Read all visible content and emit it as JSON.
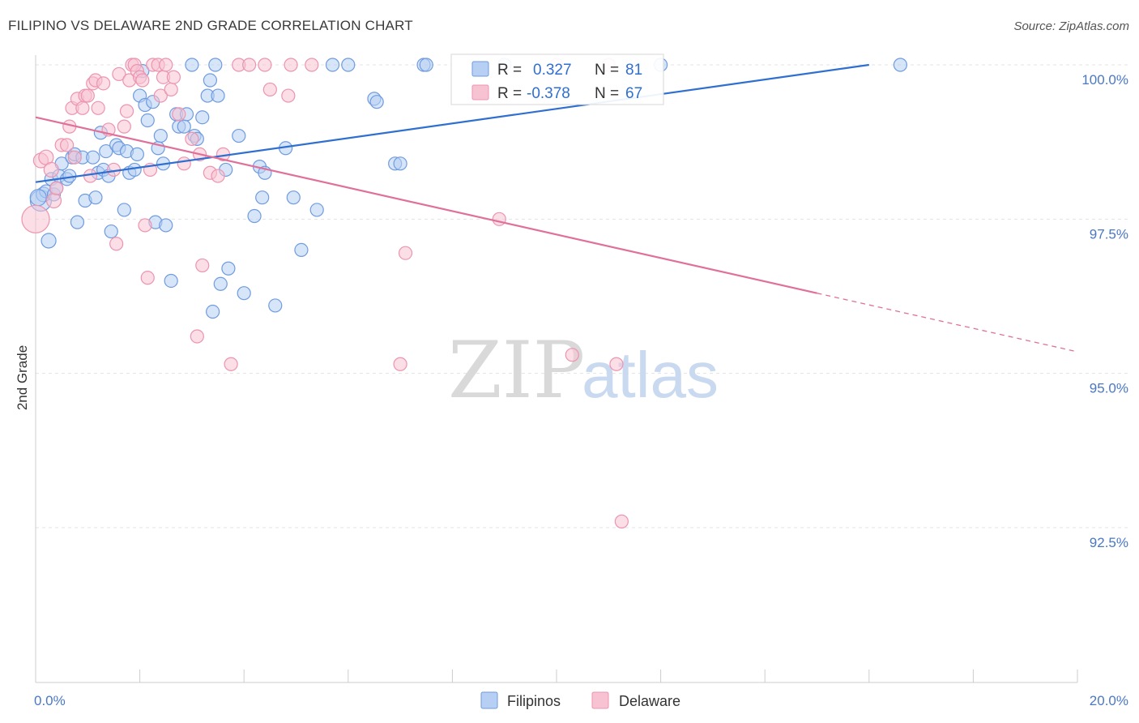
{
  "header": {
    "title": "FILIPINO VS DELAWARE 2ND GRADE CORRELATION CHART",
    "source": "Source: ZipAtlas.com"
  },
  "watermark": {
    "zip": "ZIP",
    "atlas": "atlas"
  },
  "chart_data": {
    "type": "scatter",
    "title": "FILIPINO VS DELAWARE 2ND GRADE CORRELATION CHART",
    "xlabel": "",
    "ylabel": "2nd Grade",
    "xlim": [
      0,
      20
    ],
    "ylim": [
      90.0,
      100.3
    ],
    "x_tick_labels": {
      "min": "0.0%",
      "max": "20.0%"
    },
    "y_ticks": [
      {
        "value": 100.0,
        "label": "100.0%"
      },
      {
        "value": 97.5,
        "label": "97.5%"
      },
      {
        "value": 95.0,
        "label": "95.0%"
      },
      {
        "value": 92.5,
        "label": "92.5%"
      }
    ],
    "grid": "horizontal-dashed",
    "legend_position": "bottom-center",
    "stats_box_position": "top-center",
    "series": [
      {
        "name": "Filipinos",
        "color": "#6f9be0",
        "fill": "#b7cff2",
        "line_color": "#2f6fd0",
        "R_label": "R =",
        "R": "0.327",
        "N_label": "N =",
        "N": "81",
        "trend": {
          "x0": 0.0,
          "y0": 98.1,
          "x1": 16.0,
          "y1": 100.0,
          "dashed_to": null
        },
        "points": [
          [
            0.1,
            97.8
          ],
          [
            0.15,
            97.9
          ],
          [
            0.2,
            97.95
          ],
          [
            0.25,
            97.15
          ],
          [
            0.3,
            98.15
          ],
          [
            0.35,
            97.9
          ],
          [
            0.4,
            98.0
          ],
          [
            0.45,
            98.2
          ],
          [
            0.5,
            98.4
          ],
          [
            0.6,
            98.15
          ],
          [
            0.65,
            98.2
          ],
          [
            0.7,
            98.5
          ],
          [
            0.75,
            98.55
          ],
          [
            0.8,
            97.45
          ],
          [
            0.9,
            98.5
          ],
          [
            0.95,
            97.8
          ],
          [
            1.1,
            98.5
          ],
          [
            1.15,
            97.85
          ],
          [
            1.2,
            98.25
          ],
          [
            1.25,
            98.9
          ],
          [
            1.3,
            98.3
          ],
          [
            1.35,
            98.6
          ],
          [
            1.4,
            98.2
          ],
          [
            1.45,
            97.3
          ],
          [
            1.55,
            98.7
          ],
          [
            1.6,
            98.65
          ],
          [
            1.7,
            97.65
          ],
          [
            1.75,
            98.6
          ],
          [
            1.8,
            98.25
          ],
          [
            1.9,
            98.3
          ],
          [
            1.95,
            98.55
          ],
          [
            2.0,
            99.5
          ],
          [
            2.05,
            99.9
          ],
          [
            2.1,
            99.35
          ],
          [
            2.15,
            99.1
          ],
          [
            2.25,
            99.4
          ],
          [
            2.3,
            97.45
          ],
          [
            2.35,
            98.65
          ],
          [
            2.4,
            98.85
          ],
          [
            2.45,
            98.4
          ],
          [
            2.5,
            97.4
          ],
          [
            2.6,
            96.5
          ],
          [
            2.7,
            99.2
          ],
          [
            2.75,
            99.0
          ],
          [
            2.85,
            99.0
          ],
          [
            2.9,
            99.2
          ],
          [
            3.0,
            100.0
          ],
          [
            3.05,
            98.85
          ],
          [
            3.1,
            98.8
          ],
          [
            3.2,
            99.15
          ],
          [
            3.3,
            99.5
          ],
          [
            3.35,
            99.75
          ],
          [
            3.4,
            96.0
          ],
          [
            3.45,
            100.0
          ],
          [
            3.5,
            99.5
          ],
          [
            3.55,
            96.45
          ],
          [
            3.65,
            98.3
          ],
          [
            3.7,
            96.7
          ],
          [
            3.9,
            98.85
          ],
          [
            4.0,
            96.3
          ],
          [
            4.2,
            97.55
          ],
          [
            4.3,
            98.35
          ],
          [
            4.35,
            97.85
          ],
          [
            4.4,
            98.25
          ],
          [
            4.6,
            96.1
          ],
          [
            4.8,
            98.65
          ],
          [
            4.95,
            97.85
          ],
          [
            5.1,
            97.0
          ],
          [
            5.4,
            97.65
          ],
          [
            5.7,
            100.0
          ],
          [
            6.0,
            100.0
          ],
          [
            6.5,
            99.45
          ],
          [
            6.55,
            99.4
          ],
          [
            6.9,
            98.4
          ],
          [
            7.0,
            98.4
          ],
          [
            7.45,
            100.0
          ],
          [
            7.5,
            100.0
          ],
          [
            9.0,
            100.0
          ],
          [
            12.0,
            100.0
          ],
          [
            16.6,
            100.0
          ],
          [
            0.05,
            97.85
          ]
        ],
        "sizes": [
          22,
          14,
          12,
          14,
          12,
          12,
          12,
          12,
          12,
          12,
          12,
          12,
          12,
          12,
          12,
          12,
          12,
          12,
          12,
          12,
          12,
          12,
          12,
          12,
          12,
          12,
          12,
          12,
          12,
          12,
          12,
          12,
          12,
          12,
          12,
          12,
          12,
          12,
          12,
          12,
          12,
          12,
          12,
          12,
          12,
          12,
          12,
          12,
          12,
          12,
          12,
          12,
          12,
          12,
          12,
          12,
          12,
          12,
          12,
          12,
          12,
          12,
          12,
          12,
          12,
          12,
          12,
          12,
          12,
          12,
          12,
          12,
          12,
          12,
          12,
          12,
          12,
          12,
          12,
          12,
          16
        ]
      },
      {
        "name": "Delaware",
        "color": "#ec94b0",
        "fill": "#f7c2d2",
        "line_color": "#e0709a",
        "R_label": "R =",
        "R": "-0.378",
        "N_label": "N =",
        "N": "67",
        "trend": {
          "x0": 0.0,
          "y0": 99.15,
          "x1": 15.0,
          "y1": 96.3,
          "dashed_to": {
            "x": 20.0,
            "y": 95.35
          }
        },
        "points": [
          [
            0.0,
            97.5
          ],
          [
            0.1,
            98.45
          ],
          [
            0.2,
            98.5
          ],
          [
            0.3,
            98.3
          ],
          [
            0.35,
            97.8
          ],
          [
            0.4,
            98.0
          ],
          [
            0.5,
            98.7
          ],
          [
            0.6,
            98.7
          ],
          [
            0.65,
            99.0
          ],
          [
            0.7,
            99.3
          ],
          [
            0.75,
            98.5
          ],
          [
            0.8,
            99.45
          ],
          [
            0.9,
            99.3
          ],
          [
            0.95,
            99.5
          ],
          [
            1.0,
            99.5
          ],
          [
            1.05,
            98.2
          ],
          [
            1.1,
            99.7
          ],
          [
            1.15,
            99.75
          ],
          [
            1.2,
            99.3
          ],
          [
            1.3,
            99.7
          ],
          [
            1.4,
            98.95
          ],
          [
            1.5,
            98.3
          ],
          [
            1.55,
            97.1
          ],
          [
            1.6,
            99.85
          ],
          [
            1.7,
            99.0
          ],
          [
            1.75,
            99.25
          ],
          [
            1.8,
            99.75
          ],
          [
            1.85,
            100.0
          ],
          [
            1.9,
            100.0
          ],
          [
            1.95,
            99.9
          ],
          [
            2.0,
            99.8
          ],
          [
            2.05,
            99.75
          ],
          [
            2.1,
            97.4
          ],
          [
            2.15,
            96.55
          ],
          [
            2.2,
            98.3
          ],
          [
            2.25,
            100.0
          ],
          [
            2.35,
            100.0
          ],
          [
            2.4,
            99.5
          ],
          [
            2.45,
            99.8
          ],
          [
            2.5,
            100.0
          ],
          [
            2.6,
            99.6
          ],
          [
            2.65,
            99.8
          ],
          [
            2.75,
            99.2
          ],
          [
            2.85,
            98.4
          ],
          [
            3.0,
            98.8
          ],
          [
            3.1,
            95.6
          ],
          [
            3.15,
            98.55
          ],
          [
            3.2,
            96.75
          ],
          [
            3.35,
            98.25
          ],
          [
            3.5,
            98.2
          ],
          [
            3.6,
            98.55
          ],
          [
            3.75,
            95.15
          ],
          [
            3.9,
            100.0
          ],
          [
            4.1,
            100.0
          ],
          [
            4.4,
            100.0
          ],
          [
            4.5,
            99.6
          ],
          [
            4.85,
            99.5
          ],
          [
            4.9,
            100.0
          ],
          [
            5.3,
            100.0
          ],
          [
            7.0,
            95.15
          ],
          [
            7.1,
            96.95
          ],
          [
            8.9,
            97.5
          ],
          [
            10.0,
            100.0
          ],
          [
            10.3,
            95.3
          ],
          [
            11.0,
            100.0
          ],
          [
            11.15,
            95.15
          ],
          [
            11.25,
            92.6
          ]
        ],
        "sizes": [
          30,
          14,
          14,
          14,
          14,
          12,
          12,
          12,
          12,
          12,
          12,
          12,
          12,
          12,
          12,
          12,
          12,
          12,
          12,
          12,
          12,
          12,
          12,
          12,
          12,
          12,
          12,
          12,
          12,
          12,
          12,
          12,
          12,
          12,
          12,
          12,
          12,
          12,
          12,
          12,
          12,
          12,
          12,
          12,
          12,
          12,
          12,
          12,
          12,
          12,
          12,
          12,
          12,
          12,
          12,
          12,
          12,
          12,
          12,
          12,
          12,
          12,
          12,
          12,
          12,
          12,
          12
        ]
      }
    ]
  }
}
